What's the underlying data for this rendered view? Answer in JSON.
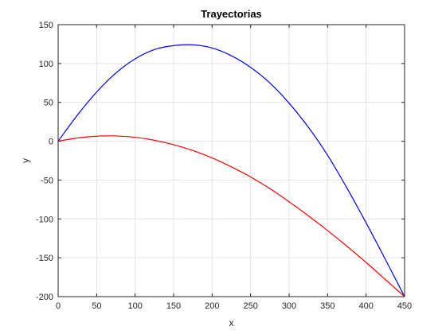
{
  "chart_data": {
    "type": "line",
    "title": "Trayectorias",
    "xlabel": "x",
    "ylabel": "y",
    "xlim": [
      0,
      450
    ],
    "ylim": [
      -200,
      150
    ],
    "xticks": [
      0,
      50,
      100,
      150,
      200,
      250,
      300,
      350,
      400,
      450
    ],
    "yticks": [
      -200,
      -150,
      -100,
      -50,
      0,
      50,
      100,
      150
    ],
    "grid": true,
    "series": [
      {
        "color": "#0000ff",
        "x": [
          0,
          25,
          50,
          75,
          100,
          125,
          150,
          175,
          200,
          225,
          250,
          275,
          300,
          325,
          350,
          375,
          400,
          425,
          450
        ],
        "y": [
          0,
          33.6,
          63.3,
          87.8,
          106,
          118,
          123,
          124,
          120,
          110,
          95,
          75,
          49,
          18,
          -18,
          -60,
          -105,
          -152,
          -200
        ]
      },
      {
        "color": "#ff0000",
        "x": [
          0,
          25,
          50,
          75,
          100,
          125,
          150,
          175,
          200,
          225,
          250,
          275,
          300,
          325,
          350,
          375,
          400,
          425,
          450
        ],
        "y": [
          0,
          4.2,
          6.5,
          6.8,
          5.1,
          1.2,
          -4.5,
          -12,
          -21.5,
          -33,
          -46,
          -61,
          -78,
          -96,
          -115,
          -135,
          -156,
          -178,
          -200
        ]
      }
    ]
  }
}
